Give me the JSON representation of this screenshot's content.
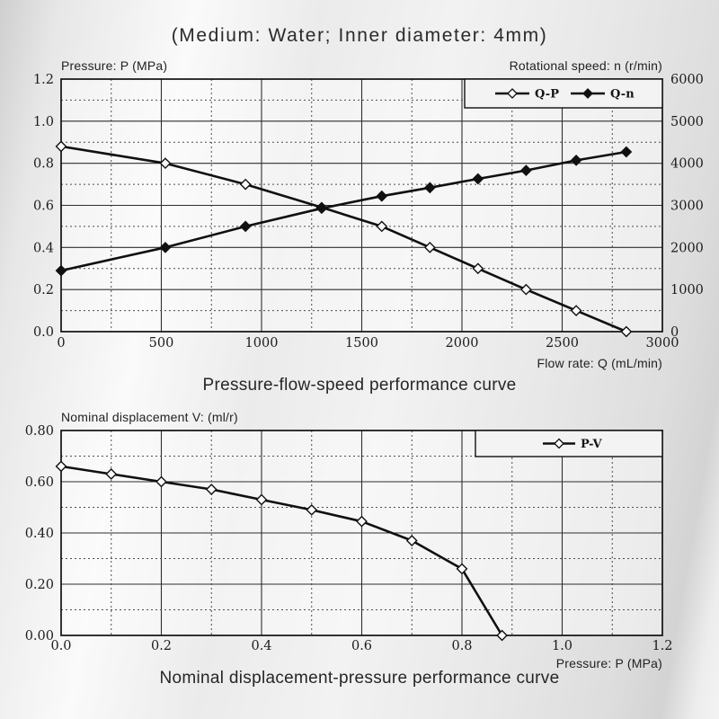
{
  "page": {
    "title": "(Medium: Water; Inner diameter: 4mm)"
  },
  "colors": {
    "line": "#101010",
    "grid_major": "#2e2e2e",
    "grid_minor": "#4d4d4d",
    "text": "#222222",
    "legend_fill": "#f3f3f3"
  },
  "chart_data": [
    {
      "type": "line",
      "title": "Pressure-flow-speed performance curve",
      "grid": true,
      "legend_position": "top-right",
      "x_axis": {
        "label": "Flow rate: Q (mL/min)",
        "range": [
          0,
          3000
        ],
        "major_step": 500,
        "minor_step": 250,
        "ticks": [
          "0",
          "500",
          "1000",
          "1500",
          "2000",
          "2500",
          "3000"
        ]
      },
      "y_left": {
        "label": "Pressure: P (MPa)",
        "range": [
          0,
          1.2
        ],
        "major_step": 0.2,
        "minor_step": 0.1,
        "ticks": [
          "0.0",
          "0.2",
          "0.4",
          "0.6",
          "0.8",
          "1.0",
          "1.2"
        ]
      },
      "y_right": {
        "label": "Rotational speed: n (r/min)",
        "range": [
          0,
          6000
        ],
        "major_step": 1000,
        "minor_step": 500,
        "ticks": [
          "0",
          "1000",
          "2000",
          "3000",
          "4000",
          "5000",
          "6000"
        ]
      },
      "series": [
        {
          "name": "Q-P",
          "axis": "left",
          "marker": "open-diamond",
          "x": [
            0,
            520,
            920,
            1300,
            1600,
            1840,
            2080,
            2320,
            2570,
            2820
          ],
          "y": [
            0.88,
            0.8,
            0.7,
            0.59,
            0.5,
            0.4,
            0.3,
            0.2,
            0.1,
            0.0
          ]
        },
        {
          "name": "Q-n",
          "axis": "right",
          "marker": "filled-diamond",
          "x": [
            0,
            520,
            920,
            1300,
            1600,
            1840,
            2080,
            2320,
            2570,
            2820
          ],
          "y": [
            1450,
            2000,
            2500,
            2930,
            3220,
            3420,
            3630,
            3830,
            4070,
            4270
          ]
        }
      ]
    },
    {
      "type": "line",
      "title": "Nominal displacement-pressure performance curve",
      "grid": true,
      "legend_position": "top-right",
      "x_axis": {
        "label": "Pressure: P (MPa)",
        "range": [
          0,
          1.2
        ],
        "major_step": 0.2,
        "minor_step": 0.1,
        "ticks": [
          "0.0",
          "0.2",
          "0.4",
          "0.6",
          "0.8",
          "1.0",
          "1.2"
        ]
      },
      "y_left": {
        "label": "Nominal displacement V: (ml/r)",
        "range": [
          0,
          0.8
        ],
        "major_step": 0.2,
        "minor_step": 0.1,
        "ticks": [
          "0.00",
          "0.20",
          "0.40",
          "0.60",
          "0.80"
        ]
      },
      "series": [
        {
          "name": "P-V",
          "axis": "left",
          "marker": "open-diamond",
          "x": [
            0.0,
            0.1,
            0.2,
            0.3,
            0.4,
            0.5,
            0.6,
            0.7,
            0.8,
            0.88
          ],
          "y": [
            0.66,
            0.63,
            0.6,
            0.57,
            0.53,
            0.49,
            0.445,
            0.37,
            0.26,
            0.0
          ]
        }
      ]
    }
  ]
}
